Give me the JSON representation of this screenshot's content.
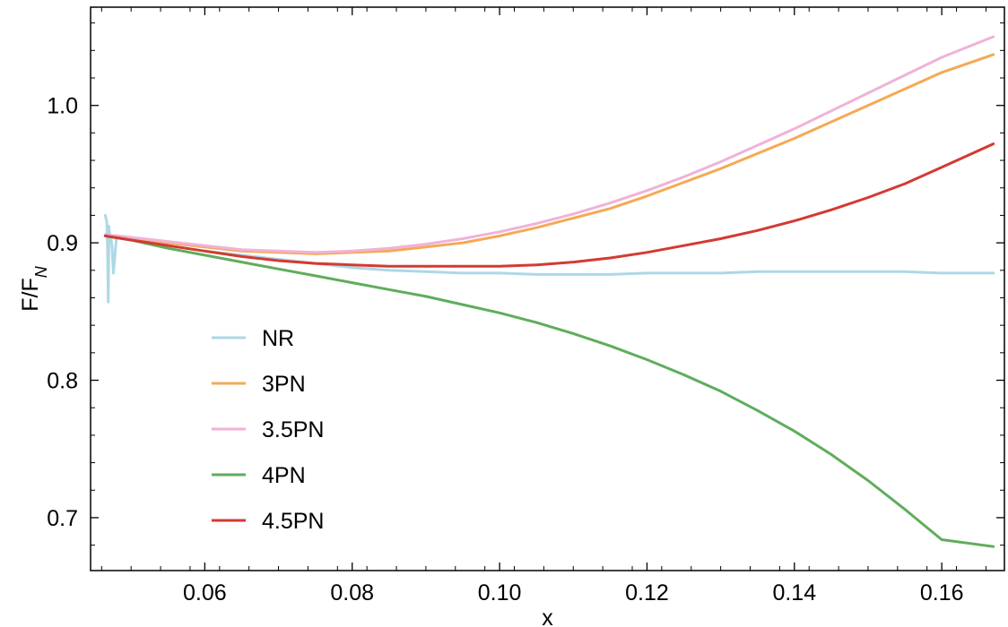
{
  "chart_data": {
    "type": "line",
    "title": "",
    "xlabel": "x",
    "ylabel_main": "F/F",
    "ylabel_sub": "N",
    "xlim": [
      0.0445,
      0.1685
    ],
    "ylim": [
      0.6615,
      1.0715
    ],
    "xticks": [
      0.06,
      0.08,
      0.1,
      0.12,
      0.14,
      0.16
    ],
    "xtick_labels": [
      "0.06",
      "0.08",
      "0.10",
      "0.12",
      "0.14",
      "0.16"
    ],
    "yticks": [
      0.7,
      0.8,
      0.9,
      1.0
    ],
    "ytick_labels": [
      "0.7",
      "0.8",
      "0.9",
      "1.0"
    ],
    "grid": false,
    "legend_position": "lower-left",
    "series": [
      {
        "name": "NR",
        "color": "#add8e6",
        "x": [
          0.0465,
          0.0467,
          0.0468,
          0.0469,
          0.047,
          0.0471,
          0.0472,
          0.0474,
          0.0476,
          0.048,
          0.049,
          0.05,
          0.055,
          0.06,
          0.065,
          0.07,
          0.075,
          0.08,
          0.085,
          0.09,
          0.095,
          0.1,
          0.105,
          0.11,
          0.115,
          0.12,
          0.125,
          0.13,
          0.135,
          0.14,
          0.145,
          0.15,
          0.155,
          0.16,
          0.167
        ],
        "y": [
          0.92,
          0.915,
          0.897,
          0.857,
          0.912,
          0.903,
          0.906,
          0.898,
          0.878,
          0.904,
          0.903,
          0.902,
          0.898,
          0.894,
          0.891,
          0.888,
          0.885,
          0.882,
          0.88,
          0.879,
          0.878,
          0.878,
          0.877,
          0.877,
          0.877,
          0.878,
          0.878,
          0.878,
          0.879,
          0.879,
          0.879,
          0.879,
          0.879,
          0.878,
          0.878
        ]
      },
      {
        "name": "3PN",
        "color": "#f4aa55",
        "x": [
          0.0465,
          0.05,
          0.055,
          0.06,
          0.065,
          0.07,
          0.075,
          0.08,
          0.085,
          0.09,
          0.095,
          0.1,
          0.105,
          0.11,
          0.115,
          0.12,
          0.125,
          0.13,
          0.135,
          0.14,
          0.145,
          0.15,
          0.155,
          0.16,
          0.167
        ],
        "y": [
          0.905,
          0.903,
          0.9,
          0.897,
          0.894,
          0.893,
          0.892,
          0.893,
          0.894,
          0.897,
          0.9,
          0.905,
          0.911,
          0.918,
          0.925,
          0.934,
          0.944,
          0.954,
          0.965,
          0.976,
          0.988,
          1.0,
          1.012,
          1.024,
          1.037
        ]
      },
      {
        "name": "3.5PN",
        "color": "#f0b2d8",
        "x": [
          0.0465,
          0.05,
          0.055,
          0.06,
          0.065,
          0.07,
          0.075,
          0.08,
          0.085,
          0.09,
          0.095,
          0.1,
          0.105,
          0.11,
          0.115,
          0.12,
          0.125,
          0.13,
          0.135,
          0.14,
          0.145,
          0.15,
          0.155,
          0.16,
          0.167
        ],
        "y": [
          0.906,
          0.904,
          0.901,
          0.898,
          0.895,
          0.894,
          0.893,
          0.894,
          0.896,
          0.899,
          0.903,
          0.908,
          0.914,
          0.921,
          0.929,
          0.938,
          0.948,
          0.959,
          0.971,
          0.983,
          0.996,
          1.009,
          1.022,
          1.035,
          1.05
        ]
      },
      {
        "name": "4PN",
        "color": "#5fad5c",
        "x": [
          0.0465,
          0.05,
          0.055,
          0.06,
          0.065,
          0.07,
          0.075,
          0.08,
          0.085,
          0.09,
          0.095,
          0.1,
          0.105,
          0.11,
          0.115,
          0.12,
          0.125,
          0.13,
          0.135,
          0.14,
          0.145,
          0.15,
          0.155,
          0.16,
          0.167
        ],
        "y": [
          0.905,
          0.902,
          0.896,
          0.891,
          0.886,
          0.881,
          0.876,
          0.871,
          0.866,
          0.861,
          0.855,
          0.849,
          0.842,
          0.834,
          0.825,
          0.815,
          0.804,
          0.792,
          0.778,
          0.763,
          0.746,
          0.727,
          0.706,
          0.684,
          0.679
        ]
      },
      {
        "name": "4.5PN",
        "color": "#d33a32",
        "x": [
          0.0465,
          0.05,
          0.055,
          0.06,
          0.065,
          0.07,
          0.075,
          0.08,
          0.085,
          0.09,
          0.095,
          0.1,
          0.105,
          0.11,
          0.115,
          0.12,
          0.125,
          0.13,
          0.135,
          0.14,
          0.145,
          0.15,
          0.155,
          0.16,
          0.167
        ],
        "y": [
          0.905,
          0.902,
          0.898,
          0.894,
          0.89,
          0.887,
          0.885,
          0.884,
          0.883,
          0.883,
          0.883,
          0.883,
          0.884,
          0.886,
          0.889,
          0.893,
          0.898,
          0.903,
          0.909,
          0.916,
          0.924,
          0.933,
          0.943,
          0.955,
          0.972
        ]
      }
    ]
  }
}
